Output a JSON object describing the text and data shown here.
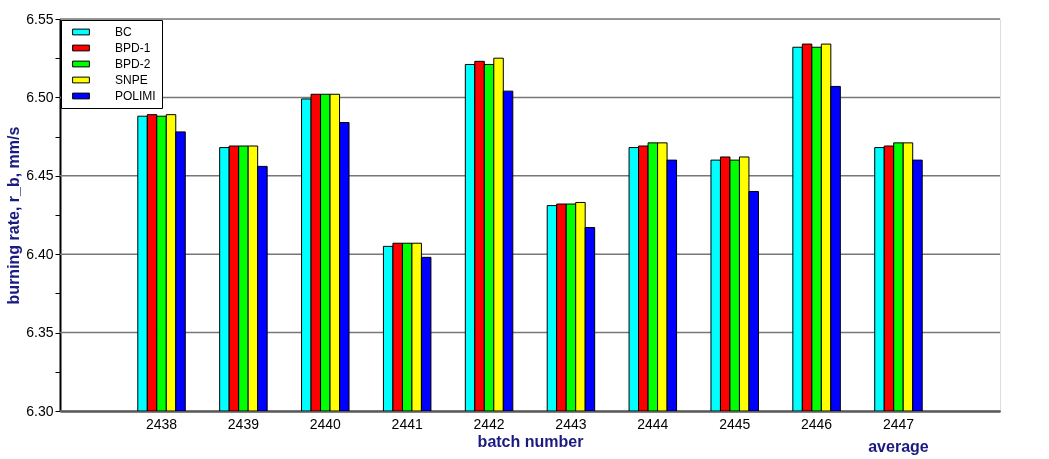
{
  "chart_data": {
    "type": "bar",
    "xlabel": "batch number",
    "ylabel": "burning rate, r_b, mm/s",
    "categories": [
      "2438",
      "2439",
      "2440",
      "2441",
      "2442",
      "2443",
      "2444",
      "2445",
      "2446",
      "2447"
    ],
    "series": [
      {
        "name": "BC",
        "color": "#00ffff",
        "values": [
          6.488,
          6.468,
          6.499,
          6.405,
          6.521,
          6.431,
          6.468,
          6.46,
          6.532,
          6.468
        ]
      },
      {
        "name": "BPD-1",
        "color": "#ff0000",
        "values": [
          6.489,
          6.469,
          6.502,
          6.407,
          6.523,
          6.432,
          6.469,
          6.462,
          6.534,
          6.469
        ]
      },
      {
        "name": "BPD-2",
        "color": "#00ff00",
        "values": [
          6.488,
          6.469,
          6.502,
          6.407,
          6.521,
          6.432,
          6.471,
          6.46,
          6.532,
          6.471
        ]
      },
      {
        "name": "SNPE",
        "color": "#ffff00",
        "values": [
          6.489,
          6.469,
          6.502,
          6.407,
          6.525,
          6.433,
          6.471,
          6.462,
          6.534,
          6.471
        ]
      },
      {
        "name": "POLIMI",
        "color": "#0000ff",
        "values": [
          6.478,
          6.456,
          6.484,
          6.398,
          6.504,
          6.417,
          6.46,
          6.44,
          6.507,
          6.46
        ]
      }
    ],
    "ylim": [
      6.3,
      6.55
    ],
    "yticks": [
      {
        "value": 6.3,
        "label": "6.30"
      },
      {
        "value": 6.325,
        "label": null
      },
      {
        "value": 6.35,
        "label": "6.35"
      },
      {
        "value": 6.375,
        "label": null
      },
      {
        "value": 6.4,
        "label": "6.40"
      },
      {
        "value": 6.425,
        "label": null
      },
      {
        "value": 6.45,
        "label": "6.45"
      },
      {
        "value": 6.475,
        "label": null
      },
      {
        "value": 6.5,
        "label": "6.50"
      },
      {
        "value": 6.525,
        "label": null
      },
      {
        "value": 6.55,
        "label": "6.55"
      }
    ],
    "grid": "y",
    "legend": "top left",
    "annotations": [
      "average"
    ]
  }
}
